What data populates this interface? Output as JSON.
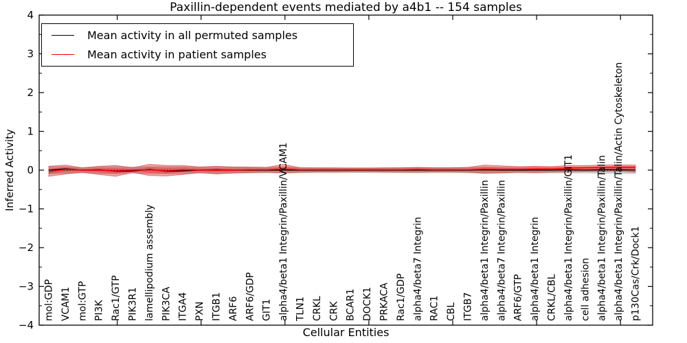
{
  "figure": {
    "title": "Paxillin-dependent events mediated by a4b1 -- 154 samples",
    "xlabel": "Cellular Entities",
    "ylabel": "Inferred Activity",
    "legend": [
      {
        "label": "Mean activity in all permuted samples",
        "color": "#000000"
      },
      {
        "label": "Mean activity in patient samples",
        "color": "#ff0000"
      }
    ]
  },
  "chart_data": {
    "type": "line",
    "title": "Paxillin-dependent events mediated by a4b1 -- 154 samples",
    "xlabel": "Cellular Entities",
    "ylabel": "Inferred Activity",
    "ylim": [
      -4,
      4
    ],
    "yticks": [
      -4,
      -3,
      -2,
      -1,
      0,
      1,
      2,
      3,
      4
    ],
    "ytick_labels": [
      "−4",
      "−3",
      "−2",
      "−1",
      "0",
      "1",
      "2",
      "3",
      "4"
    ],
    "grid": false,
    "legend_position": "upper left",
    "zero_line": 0,
    "categories": [
      "mol:GDP",
      "VCAM1",
      "mol:GTP",
      "PI3K",
      "Rac1/GTP",
      "PIK3R1",
      "lamellipodium assembly",
      "PIK3CA",
      "ITGA4",
      "PXN",
      "ITGB1",
      "ARF6",
      "ARF6/GDP",
      "GIT1",
      "alpha4/beta1 Integrin/Paxillin/VCAM1",
      "TLN1",
      "CRKL",
      "CRK",
      "BCAR1",
      "DOCK1",
      "PRKACA",
      "Rac1/GDP",
      "alpha4/beta7 Integrin",
      "RAC1",
      "CBL",
      "ITGB7",
      "alpha4/beta1 Integrin/Paxillin",
      "alpha4/beta7 Integrin/Paxillin",
      "ARF6/GTP",
      "alpha4/beta1 Integrin",
      "CRKL/CBL",
      "alpha4/beta1 Integrin/Paxillin/GIT1",
      "cell adhesion",
      "alpha4/beta1 Integrin/Paxillin/Talin",
      "alpha4/beta1 Integrin/Paxillin/Talin/Actin Cytoskeleton",
      "p130Cas/Crk/Dock1"
    ],
    "series": [
      {
        "name": "Mean activity in all permuted samples",
        "color": "#000000",
        "values": [
          0,
          0.035,
          0,
          0.01,
          -0.03,
          -0.025,
          0.02,
          -0.03,
          -0.02,
          0,
          0.01,
          0,
          0,
          0,
          0,
          0,
          0,
          0,
          0,
          0,
          0,
          0,
          0,
          0,
          0,
          0,
          0.01,
          0,
          0,
          0,
          0,
          0.01,
          0,
          0.01,
          0.01,
          0
        ]
      },
      {
        "name": "Mean activity in patient samples",
        "color": "#ff0000",
        "values": [
          -0.04,
          0.02,
          0,
          0,
          -0.02,
          0,
          0.01,
          -0.02,
          0.01,
          0,
          0,
          0,
          0.01,
          0.01,
          0.03,
          0.01,
          0.01,
          0.01,
          0.01,
          0.01,
          0.01,
          0.01,
          0.02,
          0.01,
          0.01,
          0.01,
          0.025,
          0.02,
          0.02,
          0.03,
          0.03,
          0.05,
          0.06,
          0.065,
          0.075,
          0.07
        ]
      }
    ],
    "bands": [
      {
        "name": "permuted samples range",
        "color": "#787878",
        "opacity": 0.4,
        "lower": [
          -0.1,
          -0.095,
          -0.08,
          -0.1,
          -0.105,
          -0.09,
          -0.1,
          -0.105,
          -0.1,
          -0.09,
          -0.095,
          -0.09,
          -0.085,
          -0.08,
          -0.085,
          -0.08,
          -0.075,
          -0.075,
          -0.07,
          -0.07,
          -0.075,
          -0.075,
          -0.08,
          -0.075,
          -0.075,
          -0.08,
          -0.09,
          -0.085,
          -0.08,
          -0.085,
          -0.08,
          -0.085,
          -0.08,
          -0.09,
          -0.09,
          -0.1
        ],
        "upper": [
          0.1,
          0.1,
          0.08,
          0.095,
          0.1,
          0.09,
          0.1,
          0.1,
          0.1,
          0.09,
          0.095,
          0.09,
          0.085,
          0.08,
          0.09,
          0.08,
          0.075,
          0.075,
          0.07,
          0.07,
          0.075,
          0.075,
          0.08,
          0.075,
          0.075,
          0.08,
          0.09,
          0.085,
          0.08,
          0.085,
          0.08,
          0.09,
          0.085,
          0.09,
          0.095,
          0.1
        ]
      },
      {
        "name": "patient samples range",
        "color": "#e61919",
        "opacity": 0.38,
        "lower": [
          -0.16,
          -0.1,
          -0.055,
          -0.11,
          -0.16,
          -0.055,
          -0.14,
          -0.15,
          -0.11,
          -0.06,
          -0.1,
          -0.07,
          -0.06,
          -0.05,
          -0.07,
          -0.05,
          -0.045,
          -0.045,
          -0.04,
          -0.04,
          -0.045,
          -0.05,
          -0.05,
          -0.045,
          -0.045,
          -0.05,
          -0.08,
          -0.07,
          -0.05,
          -0.06,
          -0.05,
          -0.04,
          -0.03,
          -0.03,
          -0.02,
          -0.05
        ],
        "upper": [
          0.1,
          0.13,
          0.055,
          0.1,
          0.12,
          0.06,
          0.15,
          0.12,
          0.12,
          0.08,
          0.1,
          0.08,
          0.08,
          0.07,
          0.15,
          0.06,
          0.055,
          0.055,
          0.05,
          0.05,
          0.055,
          0.06,
          0.07,
          0.06,
          0.06,
          0.07,
          0.13,
          0.11,
          0.09,
          0.1,
          0.09,
          0.12,
          0.12,
          0.13,
          0.14,
          0.13
        ]
      }
    ]
  }
}
